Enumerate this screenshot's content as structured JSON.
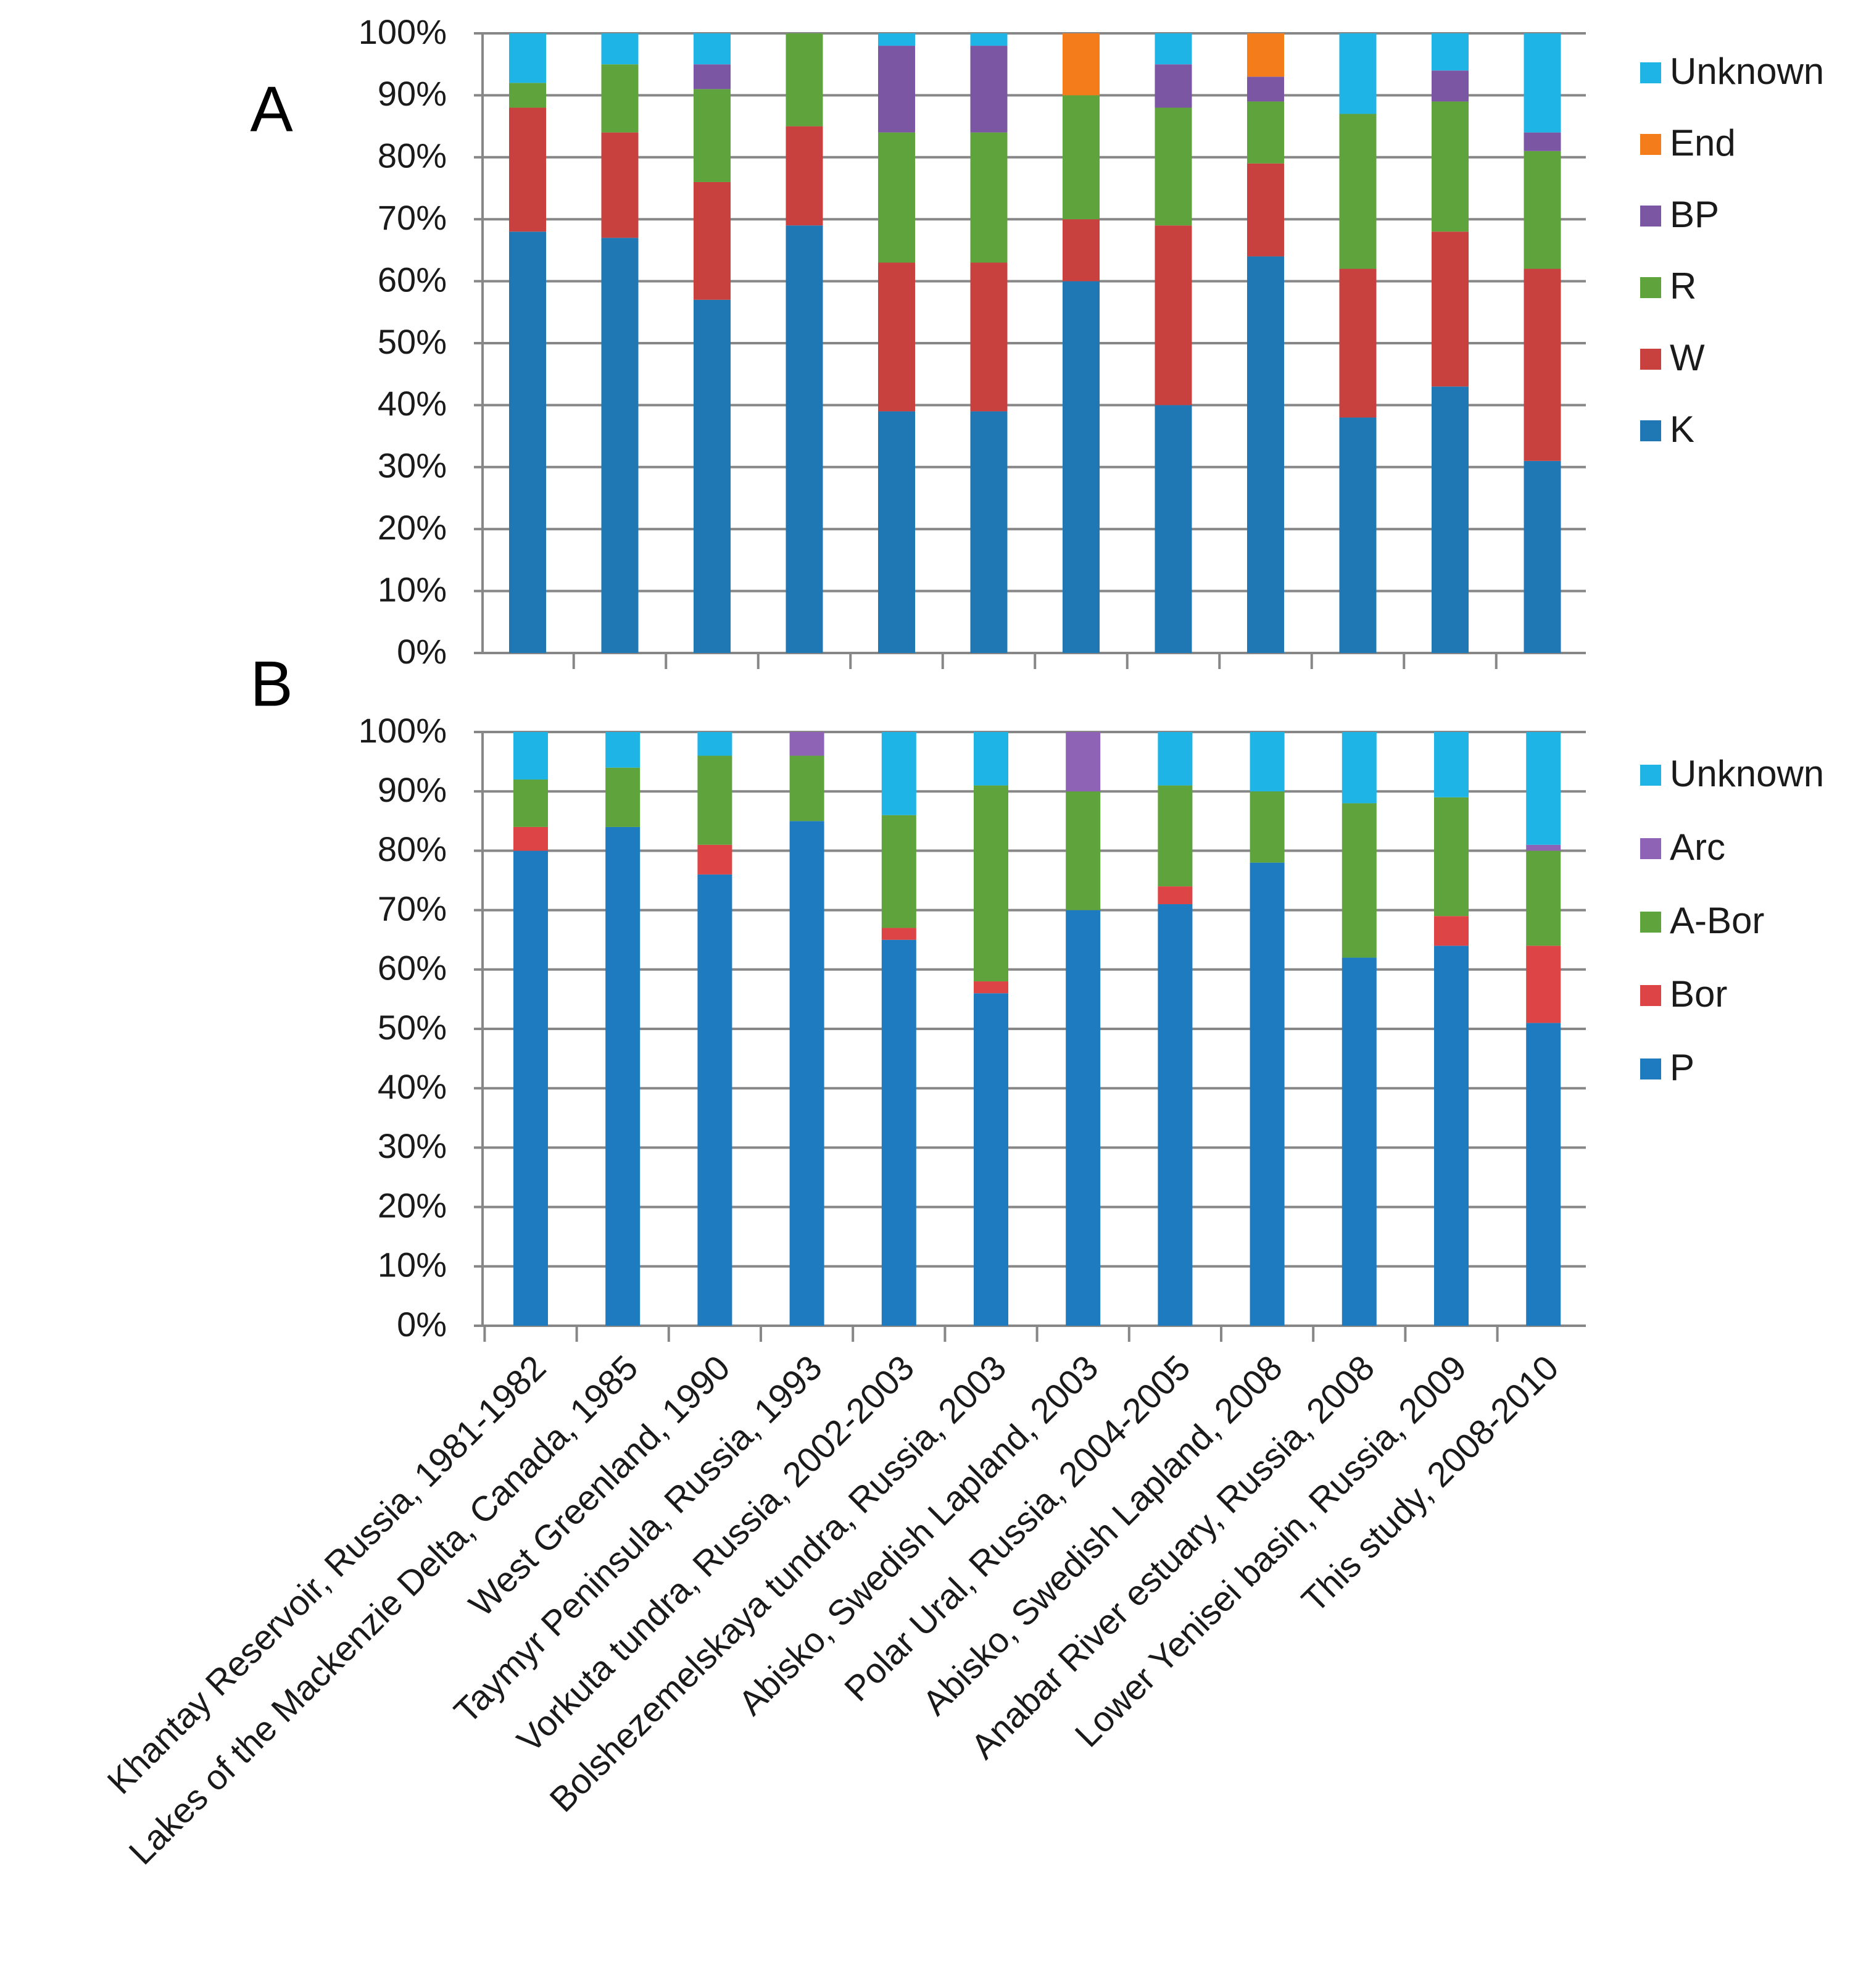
{
  "chart_data": [
    {
      "panel": "A",
      "type": "bar",
      "stacked": true,
      "percent": true,
      "categories": [
        "Khantay Reservoir, Russia, 1981-1982",
        "Lakes of the Mackenzie Delta, Canada, 1985",
        "West Greenland, 1990",
        "Taymyr Peninsula, Russia, 1993",
        "Vorkuta tundra, Russia, 2002-2003",
        "Bolshezemelskaya tundra, Russia, 2003",
        "Abisko, Swedish Lapland, 2003",
        "Polar Ural, Russia, 2004-2005",
        "Abisko, Swedish Lapland, 2008",
        "Anabar River estuary, Russia, 2008",
        "Lower Yenisei basin, Russia, 2009",
        "This study, 2008-2010"
      ],
      "series": [
        {
          "name": "K",
          "color": "#1F78B4",
          "values": [
            68,
            67,
            57,
            69,
            39,
            39,
            60,
            40,
            64,
            38,
            43,
            31
          ]
        },
        {
          "name": "W",
          "color": "#C8413F",
          "values": [
            20,
            17,
            19,
            16,
            24,
            24,
            10,
            29,
            15,
            24,
            25,
            31
          ]
        },
        {
          "name": "R",
          "color": "#5FA33C",
          "values": [
            4,
            11,
            15,
            15,
            21,
            21,
            20,
            19,
            10,
            25,
            21,
            19
          ]
        },
        {
          "name": "BP",
          "color": "#7B56A3",
          "values": [
            0,
            0,
            4,
            0,
            14,
            14,
            0,
            7,
            4,
            0,
            5,
            3
          ]
        },
        {
          "name": "End",
          "color": "#F47C1A",
          "values": [
            0,
            0,
            0,
            0,
            0,
            0,
            10,
            0,
            7,
            0,
            0,
            0
          ]
        },
        {
          "name": "Unknown",
          "color": "#1EB4E6",
          "values": [
            8,
            5,
            5,
            0,
            2,
            2,
            0,
            5,
            0,
            13,
            6,
            16
          ]
        }
      ],
      "ylim": [
        0,
        100
      ],
      "yticks": [
        "0%",
        "10%",
        "20%",
        "30%",
        "40%",
        "50%",
        "60%",
        "70%",
        "80%",
        "90%",
        "100%"
      ],
      "grid": true,
      "legend": "right",
      "xlabel": "",
      "ylabel": ""
    },
    {
      "panel": "B",
      "type": "bar",
      "stacked": true,
      "percent": true,
      "categories": [
        "Khantay Reservoir, Russia, 1981-1982",
        "Lakes of the Mackenzie Delta, Canada, 1985",
        "West Greenland, 1990",
        "Taymyr Peninsula, Russia, 1993",
        "Vorkuta tundra, Russia, 2002-2003",
        "Bolshezemelskaya tundra, Russia, 2003",
        "Abisko, Swedish Lapland, 2003",
        "Polar Ural, Russia, 2004-2005",
        "Abisko, Swedish Lapland, 2008",
        "Anabar River estuary, Russia, 2008",
        "Lower Yenisei basin, Russia, 2009",
        "This study, 2008-2010"
      ],
      "series": [
        {
          "name": "P",
          "color": "#1F7BC0",
          "values": [
            80,
            84,
            76,
            85,
            65,
            56,
            70,
            71,
            78,
            62,
            64,
            51
          ]
        },
        {
          "name": "Bor",
          "color": "#DC4445",
          "values": [
            4,
            0,
            5,
            0,
            2,
            2,
            0,
            3,
            0,
            0,
            5,
            13
          ]
        },
        {
          "name": "A-Bor",
          "color": "#5FA33C",
          "values": [
            8,
            10,
            15,
            11,
            19,
            33,
            20,
            17,
            12,
            26,
            20,
            16
          ]
        },
        {
          "name": "Arc",
          "color": "#8E63B5",
          "values": [
            0,
            0,
            0,
            4,
            0,
            0,
            10,
            0,
            0,
            0,
            0,
            1
          ]
        },
        {
          "name": "Unknown",
          "color": "#1EB4E6",
          "values": [
            8,
            6,
            4,
            0,
            14,
            9,
            0,
            9,
            10,
            12,
            11,
            19
          ]
        }
      ],
      "ylim": [
        0,
        100
      ],
      "yticks": [
        "0%",
        "10%",
        "20%",
        "30%",
        "40%",
        "50%",
        "60%",
        "70%",
        "80%",
        "90%",
        "100%"
      ],
      "grid": true,
      "legend": "right",
      "xlabel": "",
      "ylabel": ""
    }
  ]
}
